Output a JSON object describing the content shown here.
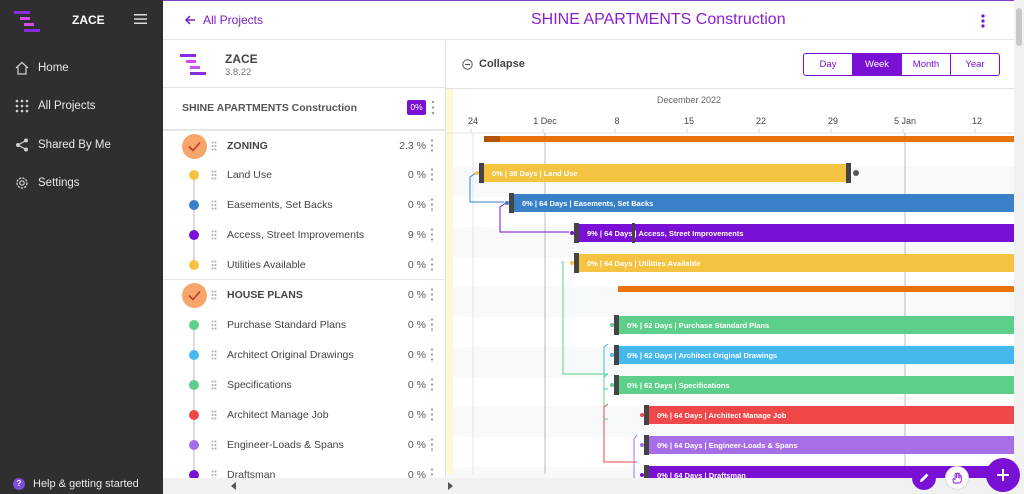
{
  "sidebar": {
    "brand": "ZACE",
    "items": [
      {
        "label": "Home",
        "icon": "home-icon"
      },
      {
        "label": "All Projects",
        "icon": "grid-icon"
      },
      {
        "label": "Shared By Me",
        "icon": "share-icon"
      },
      {
        "label": "Settings",
        "icon": "gear-icon"
      }
    ],
    "help": "Help & getting started"
  },
  "header": {
    "back_label": "All Projects",
    "title": "SHINE APARTMENTS Construction"
  },
  "panel": {
    "app_name": "ZACE",
    "version": "3.8.22",
    "project_title": "SHINE APARTMENTS Construction",
    "project_pct": "0%"
  },
  "tasks": [
    {
      "name": "ZONING",
      "pct": "2.3 %",
      "group": true
    },
    {
      "name": "Land Use",
      "pct": "0 %",
      "color": "#f5c342"
    },
    {
      "name": "Easements, Set Backs",
      "pct": "0 %",
      "color": "#3a80c9"
    },
    {
      "name": "Access, Street Improvements",
      "pct": "9 %",
      "color": "#7a10d6"
    },
    {
      "name": "Utilities Available",
      "pct": "0 %",
      "color": "#f5c342"
    },
    {
      "name": "HOUSE PLANS",
      "pct": "0 %",
      "group": true
    },
    {
      "name": "Purchase Standard Plans",
      "pct": "0 %",
      "color": "#5ccf8a"
    },
    {
      "name": "Architect Original Drawings",
      "pct": "0 %",
      "color": "#45b9ee"
    },
    {
      "name": "Specifications",
      "pct": "0 %",
      "color": "#5ccf8a"
    },
    {
      "name": "Architect Manage Job",
      "pct": "0 %",
      "color": "#f04848"
    },
    {
      "name": "Engineer-Loads & Spans",
      "pct": "0 %",
      "color": "#a86ee8"
    },
    {
      "name": "Draftsman",
      "pct": "0 %",
      "color": "#7a10d6"
    }
  ],
  "gantt": {
    "collapse_label": "Collapse",
    "zoom_options": [
      "Day",
      "Week",
      "Month",
      "Year"
    ],
    "zoom_active": "Week",
    "month_label": "December 2022",
    "ticks": [
      "24",
      "1 Dec",
      "8",
      "15",
      "22",
      "29",
      "5 Jan",
      "12"
    ],
    "bars": [
      {
        "label": "0% | 38 Days | Land Use",
        "color": "#f5c342"
      },
      {
        "label": "0% | 64 Days | Easements, Set Backs",
        "color": "#3a80c9"
      },
      {
        "label": "9% | 64 Days | Access, Street Improvements",
        "color": "#7a10d6"
      },
      {
        "label": "0% | 64 Days | Utilities Available",
        "color": "#f5c342"
      },
      {
        "label": "0% | 62 Days | Purchase Standard Plans",
        "color": "#5ccf8a"
      },
      {
        "label": "0% | 62 Days | Architect Original Drawings",
        "color": "#45b9ee"
      },
      {
        "label": "0% | 62 Days | Specifications",
        "color": "#5ccf8a"
      },
      {
        "label": "0% | 64 Days | Architect Manage Job",
        "color": "#f04848"
      },
      {
        "label": "0% | 64 Days | Engineer-Loads & Spans",
        "color": "#a86ee8"
      },
      {
        "label": "0% | 64 Days | Draftsman",
        "color": "#7a10d6"
      }
    ]
  }
}
